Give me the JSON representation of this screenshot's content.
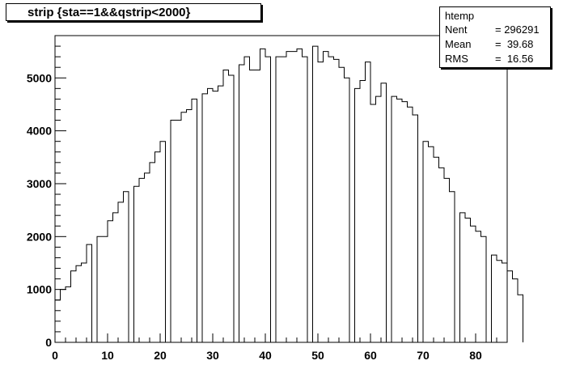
{
  "title": "strip {sta==1&&qstrip<2000}",
  "stats": {
    "name": "htemp",
    "rows": [
      {
        "key": "Nent",
        "value": "= 296291"
      },
      {
        "key": "Mean",
        "value": "=  39.68"
      },
      {
        "key": "RMS",
        "value": "=  16.56"
      }
    ]
  },
  "chart_data": {
    "type": "bar",
    "title": "strip {sta==1&&qstrip<2000}",
    "xlim": [
      0,
      86
    ],
    "ylim": [
      0,
      5800
    ],
    "xticks": [
      0,
      10,
      20,
      30,
      40,
      50,
      60,
      70,
      80
    ],
    "yticks": [
      0,
      1000,
      2000,
      3000,
      4000,
      5000
    ],
    "bin_width": 1,
    "values": [
      800,
      1000,
      1050,
      1350,
      1450,
      1500,
      1850,
      0,
      2000,
      2000,
      2300,
      2450,
      2650,
      2850,
      0,
      2950,
      3100,
      3200,
      3400,
      3600,
      3800,
      0,
      4200,
      4200,
      4350,
      4400,
      4600,
      0,
      4700,
      4800,
      4750,
      4850,
      5150,
      5050,
      0,
      5250,
      5400,
      5150,
      5150,
      5550,
      5400,
      0,
      5400,
      5400,
      5500,
      5500,
      5550,
      5400,
      0,
      5600,
      5300,
      5500,
      5400,
      5350,
      5200,
      5000,
      0,
      4800,
      4950,
      5300,
      4500,
      4650,
      4900,
      0,
      4650,
      4600,
      4550,
      4450,
      4300,
      0,
      3800,
      3700,
      3500,
      3300,
      3100,
      2850,
      0,
      2450,
      2350,
      2200,
      2100,
      2000,
      0,
      1650,
      1550,
      1500,
      1350,
      1200,
      900
    ]
  }
}
